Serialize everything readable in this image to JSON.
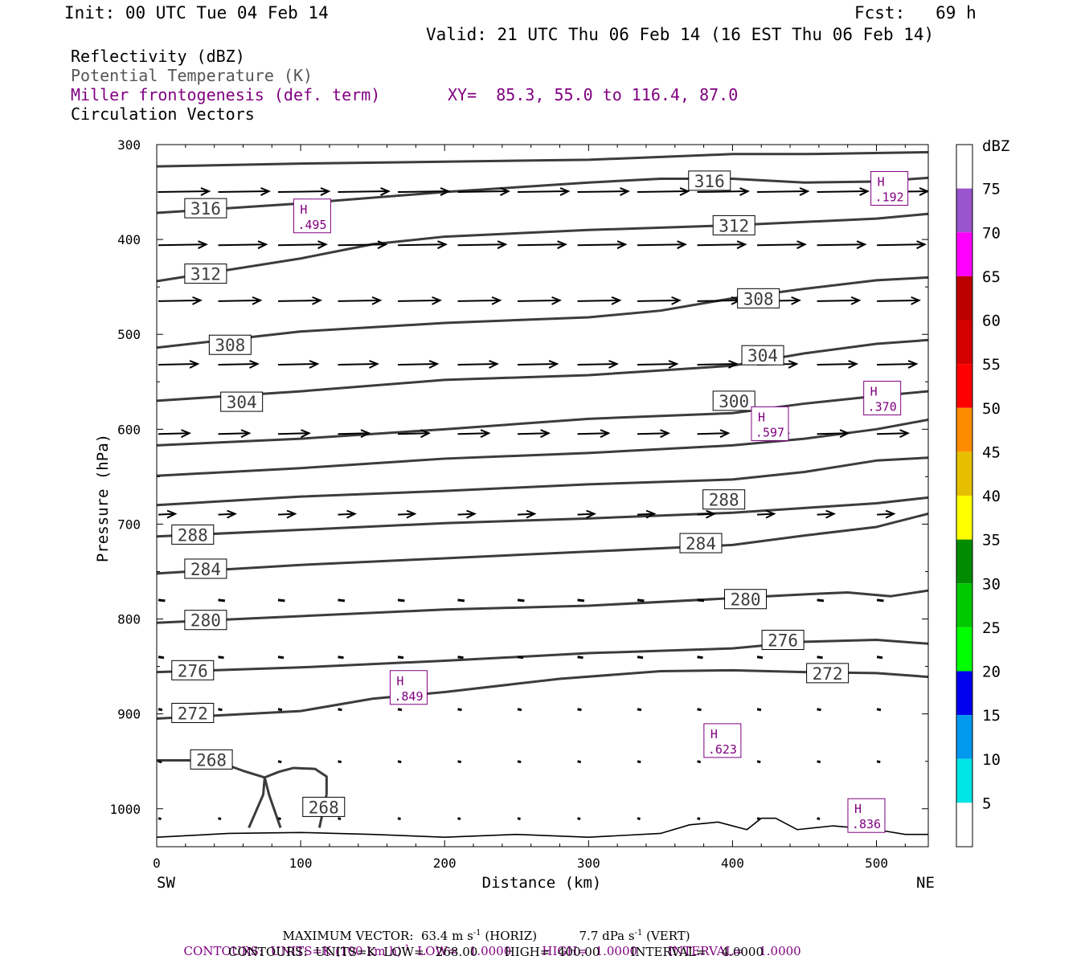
{
  "header": {
    "init": "Init: 00 UTC Tue 04 Feb 14",
    "fcst": "Fcst:   69 h",
    "valid": "Valid: 21 UTC Thu 06 Feb 14 (16 EST Thu 06 Feb 14)"
  },
  "fields": {
    "reflectivity": "Reflectivity (dBZ)",
    "potential_temperature": "Potential Temperature (K)",
    "frontogenesis": "Miller frontogenesis (def. term)",
    "xy": "XY=  85.3, 55.0 to 116.4, 87.0",
    "circulation": "Circulation Vectors"
  },
  "colors": {
    "purple": "#800080",
    "theta": "#3c3c3c"
  },
  "chart_data": {
    "type": "cross-section",
    "xlabel": "Distance (km)",
    "ylabel": "Pressure (hPa)",
    "x_range": [
      0,
      536
    ],
    "y_range": [
      300,
      1040
    ],
    "x_ticks": [
      0,
      100,
      200,
      300,
      400,
      500
    ],
    "y_ticks": [
      300,
      400,
      500,
      600,
      700,
      800,
      900,
      1000
    ],
    "left_end_label": "SW",
    "right_end_label": "NE",
    "colorbar": {
      "unit": "dBZ",
      "levels": [
        5,
        10,
        15,
        20,
        25,
        30,
        35,
        40,
        45,
        50,
        55,
        60,
        65,
        70,
        75
      ],
      "colors": [
        "#ffffff",
        "#00e5e5",
        "#0099ee",
        "#0000ee",
        "#00ff00",
        "#00c800",
        "#008c00",
        "#ffff00",
        "#e6bf00",
        "#ff8c00",
        "#ff0000",
        "#d40000",
        "#bc0000",
        "#ff00ff",
        "#9955cc",
        "#ffffff"
      ]
    },
    "theta_contours": [
      {
        "value": 324,
        "points": [
          [
            0,
            323
          ],
          [
            100,
            320
          ],
          [
            200,
            318
          ],
          [
            300,
            316
          ],
          [
            350,
            313
          ],
          [
            400,
            310
          ],
          [
            450,
            310
          ],
          [
            536,
            308
          ]
        ]
      },
      {
        "value": 316,
        "points": [
          [
            0,
            372
          ],
          [
            100,
            362
          ],
          [
            200,
            350
          ],
          [
            300,
            340
          ],
          [
            350,
            336
          ],
          [
            400,
            336
          ],
          [
            450,
            340
          ],
          [
            500,
            339
          ],
          [
            536,
            335
          ]
        ]
      },
      {
        "value": 312,
        "points": [
          [
            0,
            444
          ],
          [
            100,
            420
          ],
          [
            150,
            405
          ],
          [
            200,
            397
          ],
          [
            300,
            390
          ],
          [
            400,
            385
          ],
          [
            500,
            378
          ],
          [
            536,
            373
          ]
        ]
      },
      {
        "value": 308,
        "points": [
          [
            0,
            514
          ],
          [
            100,
            497
          ],
          [
            200,
            488
          ],
          [
            300,
            482
          ],
          [
            350,
            475
          ],
          [
            400,
            462
          ],
          [
            450,
            452
          ],
          [
            500,
            443
          ],
          [
            536,
            440
          ]
        ]
      },
      {
        "value": 304,
        "points": [
          [
            0,
            570
          ],
          [
            100,
            560
          ],
          [
            200,
            548
          ],
          [
            300,
            543
          ],
          [
            350,
            538
          ],
          [
            400,
            533
          ],
          [
            450,
            520
          ],
          [
            500,
            510
          ],
          [
            536,
            506
          ]
        ]
      },
      {
        "value": 300,
        "points": [
          [
            0,
            617
          ],
          [
            100,
            610
          ],
          [
            200,
            600
          ],
          [
            300,
            589
          ],
          [
            400,
            583
          ],
          [
            450,
            573
          ],
          [
            500,
            565
          ],
          [
            536,
            560
          ]
        ]
      },
      {
        "value": 296,
        "points": [
          [
            0,
            649
          ],
          [
            100,
            641
          ],
          [
            200,
            631
          ],
          [
            300,
            625
          ],
          [
            400,
            617
          ],
          [
            450,
            610
          ],
          [
            500,
            600
          ],
          [
            536,
            590
          ]
        ]
      },
      {
        "value": 292,
        "points": [
          [
            0,
            680
          ],
          [
            100,
            671
          ],
          [
            200,
            665
          ],
          [
            300,
            658
          ],
          [
            400,
            653
          ],
          [
            450,
            645
          ],
          [
            500,
            633
          ],
          [
            536,
            630
          ]
        ]
      },
      {
        "value": 288,
        "points": [
          [
            0,
            713
          ],
          [
            100,
            706
          ],
          [
            200,
            699
          ],
          [
            300,
            694
          ],
          [
            400,
            688
          ],
          [
            450,
            683
          ],
          [
            500,
            678
          ],
          [
            536,
            672
          ]
        ]
      },
      {
        "value": 284,
        "points": [
          [
            0,
            752
          ],
          [
            100,
            743
          ],
          [
            200,
            736
          ],
          [
            300,
            729
          ],
          [
            400,
            722
          ],
          [
            450,
            712
          ],
          [
            500,
            703
          ],
          [
            536,
            689
          ]
        ]
      },
      {
        "value": 280,
        "points": [
          [
            0,
            804
          ],
          [
            100,
            797
          ],
          [
            200,
            790
          ],
          [
            300,
            786
          ],
          [
            400,
            778
          ],
          [
            450,
            774
          ],
          [
            480,
            772
          ],
          [
            510,
            776
          ],
          [
            536,
            770
          ]
        ]
      },
      {
        "value": 276,
        "points": [
          [
            0,
            856
          ],
          [
            100,
            851
          ],
          [
            200,
            844
          ],
          [
            300,
            836
          ],
          [
            400,
            831
          ],
          [
            450,
            824
          ],
          [
            500,
            822
          ],
          [
            536,
            826
          ]
        ]
      },
      {
        "value": 272,
        "points": [
          [
            0,
            905
          ],
          [
            100,
            897
          ],
          [
            150,
            884
          ],
          [
            200,
            877
          ],
          [
            280,
            863
          ],
          [
            350,
            855
          ],
          [
            400,
            854
          ],
          [
            450,
            856
          ],
          [
            500,
            857
          ],
          [
            536,
            861
          ]
        ]
      },
      {
        "value": 268,
        "points": [
          [
            0,
            949
          ],
          [
            40,
            949
          ],
          [
            60,
            960
          ],
          [
            75,
            967
          ],
          [
            85,
            961
          ],
          [
            95,
            957
          ],
          [
            110,
            958
          ],
          [
            118,
            966
          ],
          [
            118,
            985
          ]
        ]
      }
    ],
    "theta_labels": [
      {
        "text": "316",
        "x": 34,
        "y": 367
      },
      {
        "text": "316",
        "x": 384,
        "y": 338
      },
      {
        "text": "312",
        "x": 34,
        "y": 436
      },
      {
        "text": "312",
        "x": 401,
        "y": 385
      },
      {
        "text": "308",
        "x": 51,
        "y": 511
      },
      {
        "text": "308",
        "x": 418,
        "y": 462
      },
      {
        "text": "304",
        "x": 59,
        "y": 571
      },
      {
        "text": "304",
        "x": 421,
        "y": 522
      },
      {
        "text": "300",
        "x": 401,
        "y": 570
      },
      {
        "text": "288",
        "x": 25,
        "y": 711
      },
      {
        "text": "288",
        "x": 394,
        "y": 674
      },
      {
        "text": "284",
        "x": 34,
        "y": 747
      },
      {
        "text": "284",
        "x": 378,
        "y": 720
      },
      {
        "text": "280",
        "x": 34,
        "y": 801
      },
      {
        "text": "280",
        "x": 409,
        "y": 779
      },
      {
        "text": "276",
        "x": 25,
        "y": 854
      },
      {
        "text": "276",
        "x": 435,
        "y": 822
      },
      {
        "text": "272",
        "x": 25,
        "y": 899
      },
      {
        "text": "272",
        "x": 466,
        "y": 857
      },
      {
        "text": "268",
        "x": 38,
        "y": 948
      },
      {
        "text": "268",
        "x": 116,
        "y": 998
      }
    ],
    "frontogenesis_maxima": [
      {
        "label": "H",
        "value": ".495",
        "x": 108,
        "y": 376
      },
      {
        "label": "H",
        "value": ".192",
        "x": 509,
        "y": 347
      },
      {
        "label": "H",
        "value": ".597",
        "x": 426,
        "y": 595
      },
      {
        "label": "H",
        "value": ".370",
        "x": 504,
        "y": 568
      },
      {
        "label": "H",
        "value": ".849",
        "x": 175,
        "y": 873
      },
      {
        "label": "H",
        "value": ".623",
        "x": 393,
        "y": 929
      },
      {
        "label": "H",
        "value": ".836",
        "x": 493,
        "y": 1008
      }
    ],
    "vector_rows": [
      {
        "p": 350,
        "len": 0.9
      },
      {
        "p": 406,
        "len": 0.85
      },
      {
        "p": 465,
        "len": 0.75
      },
      {
        "p": 532,
        "len": 0.7
      },
      {
        "p": 605,
        "len": 0.55
      },
      {
        "p": 690,
        "len": 0.3
      },
      {
        "p": 780,
        "len": 0.12
      },
      {
        "p": 840,
        "len": 0.1
      },
      {
        "p": 895,
        "len": 0.07
      },
      {
        "p": 950,
        "len": 0.06
      },
      {
        "p": 1010,
        "len": 0.05
      }
    ],
    "terrain": [
      [
        0,
        1030
      ],
      [
        50,
        1026
      ],
      [
        100,
        1025
      ],
      [
        150,
        1027
      ],
      [
        200,
        1030
      ],
      [
        250,
        1027
      ],
      [
        300,
        1030
      ],
      [
        350,
        1026
      ],
      [
        370,
        1017
      ],
      [
        390,
        1014
      ],
      [
        410,
        1022
      ],
      [
        420,
        1010
      ],
      [
        430,
        1010
      ],
      [
        445,
        1022
      ],
      [
        470,
        1018
      ],
      [
        500,
        1022
      ],
      [
        520,
        1027
      ],
      [
        536,
        1027
      ]
    ]
  },
  "footer": {
    "max_vector_label": "MAXIMUM VECTOR:",
    "max_horiz": "63.4 m s",
    "horiz_sup": "-1",
    "horiz_tag": "(HORIZ)",
    "max_vert": "7.7 dPa s",
    "vert_sup": "-1",
    "vert_tag": "(VERT)",
    "contours1_a": "CONTOURS:  UNITS=K (100 km h)",
    "contours1_sup": "-1",
    "contours1_b": "LOW=   1.0000        HIGH=  1.0000        INTERVAL=    1.0000",
    "contours2": "CONTOURS:  UNITS=K  LOW=   268.00       HIGH=  400.00        INTERVAL=    4.0000"
  }
}
